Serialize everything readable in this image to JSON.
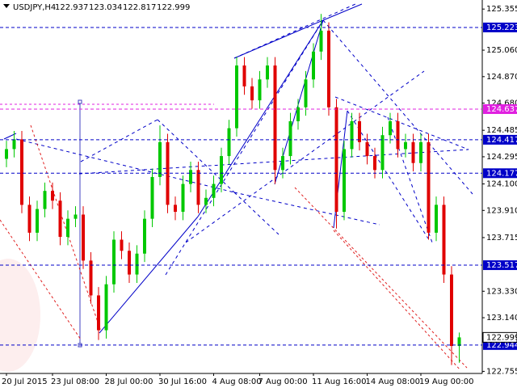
{
  "chart_data": {
    "type": "candlestick",
    "title": "USDJPY,H4",
    "x": [
      "20 Jul 2015",
      null,
      null,
      null,
      null,
      null,
      "23 Jul 08:00",
      null,
      null,
      null,
      null,
      null,
      null,
      "28 Jul 00:00",
      null,
      null,
      null,
      null,
      null,
      null,
      "30 Jul 16:00",
      null,
      null,
      null,
      null,
      null,
      null,
      "4 Aug 08:00",
      null,
      null,
      null,
      null,
      null,
      "7 Aug 00:00",
      null,
      null,
      null,
      null,
      null,
      null,
      "11 Aug 16:00",
      null,
      null,
      null,
      null,
      null,
      null,
      "14 Aug 08:00",
      null,
      null,
      null,
      null,
      null,
      null,
      "19 Aug 00:00",
      null,
      null,
      null,
      null,
      null
    ],
    "open": [
      124.28,
      124.35,
      124.42,
      123.95,
      123.75,
      123.92,
      124.05,
      123.98,
      123.72,
      123.85,
      123.88,
      123.55,
      123.3,
      123.05,
      123.38,
      123.7,
      123.62,
      123.45,
      123.6,
      123.85,
      124.15,
      124.4,
      123.95,
      123.9,
      124.1,
      124.2,
      123.95,
      124.0,
      124.1,
      124.3,
      124.5,
      124.95,
      124.8,
      124.7,
      124.85,
      124.95,
      124.2,
      124.3,
      124.55,
      124.65,
      124.85,
      125.05,
      125.2,
      124.65,
      123.9,
      124.35,
      124.55,
      124.4,
      124.3,
      124.2,
      124.45,
      124.55,
      124.35,
      124.4,
      124.25,
      124.4,
      123.75,
      123.95,
      123.45,
      122.937
    ],
    "high": [
      124.41,
      124.48,
      124.48,
      124.01,
      123.98,
      124.11,
      124.11,
      124.04,
      123.91,
      123.94,
      123.94,
      123.61,
      123.36,
      123.44,
      123.76,
      123.76,
      123.68,
      123.66,
      123.91,
      124.21,
      124.52,
      124.46,
      124.01,
      124.16,
      124.26,
      124.26,
      124.06,
      124.16,
      124.36,
      124.56,
      125.01,
      125.01,
      124.86,
      124.91,
      125.01,
      125.01,
      124.36,
      124.61,
      124.71,
      124.91,
      125.11,
      125.32,
      125.26,
      124.71,
      124.41,
      124.61,
      124.61,
      124.46,
      124.36,
      124.51,
      124.61,
      124.61,
      124.46,
      124.46,
      124.46,
      124.46,
      124.01,
      124.01,
      123.51,
      123.034
    ],
    "low": [
      124.22,
      124.29,
      123.89,
      123.69,
      123.69,
      123.86,
      123.92,
      123.66,
      123.66,
      123.79,
      123.49,
      123.24,
      122.98,
      122.99,
      123.32,
      123.56,
      123.39,
      123.39,
      123.54,
      123.79,
      124.09,
      123.89,
      123.84,
      123.84,
      124.04,
      123.89,
      123.89,
      123.94,
      124.04,
      124.24,
      124.44,
      124.74,
      124.64,
      124.64,
      124.79,
      124.1,
      124.14,
      124.24,
      124.49,
      124.59,
      124.79,
      124.99,
      124.59,
      123.78,
      123.84,
      124.29,
      124.34,
      124.24,
      124.14,
      124.14,
      124.39,
      124.29,
      124.29,
      124.19,
      124.19,
      123.7,
      123.69,
      123.39,
      122.8,
      122.817
    ],
    "close": [
      124.35,
      124.42,
      123.95,
      123.75,
      123.92,
      124.05,
      123.98,
      123.72,
      123.85,
      123.88,
      123.55,
      123.3,
      123.05,
      123.38,
      123.7,
      123.62,
      123.45,
      123.6,
      123.85,
      124.15,
      124.4,
      123.95,
      123.9,
      124.1,
      124.2,
      123.95,
      124.0,
      124.1,
      124.3,
      124.5,
      124.95,
      124.8,
      124.7,
      124.85,
      124.95,
      124.2,
      124.3,
      124.55,
      124.65,
      124.85,
      125.05,
      125.2,
      124.65,
      123.9,
      124.35,
      124.55,
      124.4,
      124.3,
      124.2,
      124.45,
      124.55,
      124.35,
      124.4,
      124.25,
      124.4,
      123.75,
      123.95,
      123.45,
      122.937,
      122.999
    ],
    "up_color": "#00c800",
    "down_color": "#e00000",
    "ylim": [
      122.74,
      125.42
    ],
    "yticks": [
      125.355,
      {
        "value": 125.06,
        "label": "125.060"
      },
      {
        "value": 124.87,
        "label": "124.870"
      },
      {
        "value": 124.68,
        "label": "124.680"
      },
      124.485,
      124.295,
      {
        "value": 124.1,
        "label": "124.100"
      },
      {
        "value": 123.91,
        "label": "123.910"
      },
      123.715,
      {
        "value": 123.33,
        "label": "123.330"
      },
      {
        "value": 123.14,
        "label": "123.140"
      },
      122.755
    ],
    "levels": [
      {
        "value": 125.223,
        "color": "#0000c8"
      },
      {
        "value": 124.637,
        "color": "#e020e0"
      },
      {
        "value": 124.417,
        "color": "#0000c8"
      },
      {
        "value": 124.177,
        "color": "#0000c8"
      },
      {
        "value": 123.517,
        "color": "#0000c8"
      },
      {
        "value": 122.944,
        "color": "#0000c8"
      }
    ]
  }
}
